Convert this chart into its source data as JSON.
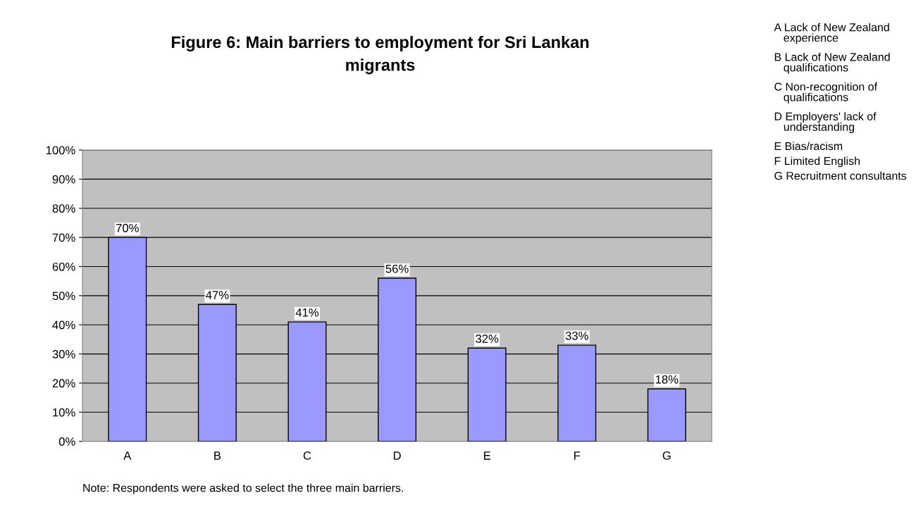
{
  "chart_data": {
    "type": "bar",
    "title": "Figure 6: Main barriers to employment for Sri Lankan\nmigrants",
    "categories": [
      "A",
      "B",
      "C",
      "D",
      "E",
      "F",
      "G"
    ],
    "values": [
      70,
      47,
      41,
      56,
      32,
      33,
      18
    ],
    "value_labels": [
      "70%",
      "47%",
      "41%",
      "56%",
      "32%",
      "33%",
      "18%"
    ],
    "color": "#9999ff",
    "ylim": [
      0,
      100
    ],
    "yticks": [
      {
        "value": 0,
        "label": "0%"
      },
      {
        "value": 10,
        "label": "10%"
      },
      {
        "value": 20,
        "label": "20%"
      },
      {
        "value": 30,
        "label": "30%"
      },
      {
        "value": 40,
        "label": "40%"
      },
      {
        "value": 50,
        "label": "50%"
      },
      {
        "value": 60,
        "label": "60%"
      },
      {
        "value": 70,
        "label": "70%"
      },
      {
        "value": 80,
        "label": "80%"
      },
      {
        "value": 90,
        "label": "90%"
      },
      {
        "value": 100,
        "label": "100%"
      }
    ],
    "grid": "y",
    "annotations": [
      "A Lack of New Zealand\n   experience",
      "B Lack of New Zealand\n   qualifications",
      "C Non-recognition of\n   qualifications",
      "D Employers' lack of\n   understanding",
      "E Bias/racism",
      "F Limited English",
      "G Recruitment consultants",
      "Note: Respondents were asked to select the three main barriers."
    ]
  }
}
